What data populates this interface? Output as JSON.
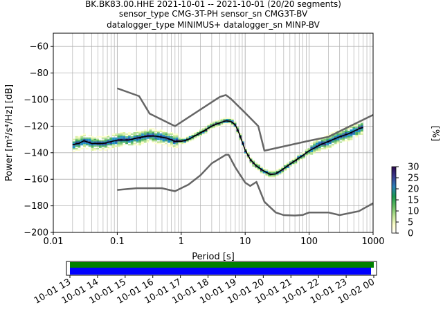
{
  "title": {
    "line1": "BK.BK83.00.HHE   2021-10-01 -- 2021-10-01  (20/20 segments)",
    "line2": "sensor_type CMG-3T-PH sensor_sn CMG3T-BV",
    "line3": "datalogger_type MINIMUS+ datalogger_sn MINP-BV"
  },
  "chart_data": [
    {
      "type": "heatmap",
      "subtype": "probabilistic-power-spectral-density",
      "xlabel": "Period [s]",
      "ylabel": "Power [m²/s⁴/Hz] [dB]",
      "xscale": "log",
      "xlim": [
        0.01,
        1000
      ],
      "ylim": [
        -200,
        -50
      ],
      "x_ticks": [
        0.01,
        0.1,
        1,
        10,
        100,
        1000
      ],
      "x_tick_labels": [
        "0.01",
        "0.1",
        "1",
        "10",
        "100",
        "1000"
      ],
      "y_ticks": [
        -200,
        -180,
        -160,
        -140,
        -120,
        -100,
        -80,
        -60
      ],
      "grid": true,
      "colorbar": {
        "label": "[%]",
        "min": 0,
        "max": 30,
        "ticks": [
          0,
          5,
          10,
          15,
          20,
          25,
          30
        ],
        "colormap": "viridis_r (white-yellow-green-blue-purple)"
      },
      "series": [
        {
          "name": "",
          "style": "gray noise model (high)",
          "color": "#666666",
          "points": [
            [
              0.1,
              -91.5
            ],
            [
              0.22,
              -97.4
            ],
            [
              0.32,
              -110.5
            ],
            [
              0.8,
              -120
            ],
            [
              4,
              -98
            ],
            [
              5,
              -96.5
            ],
            [
              6,
              -99.5
            ],
            [
              10,
              -110
            ],
            [
              16,
              -120
            ],
            [
              20,
              -138.5
            ],
            [
              100,
              -131
            ],
            [
              200,
              -128
            ],
            [
              1000,
              -111.5
            ]
          ]
        },
        {
          "name": "",
          "style": "gray noise model (low)",
          "color": "#666666",
          "points": [
            [
              0.1,
              -168
            ],
            [
              0.2,
              -166.7
            ],
            [
              0.5,
              -166.7
            ],
            [
              0.8,
              -169
            ],
            [
              1.3,
              -164
            ],
            [
              2,
              -157
            ],
            [
              3,
              -148
            ],
            [
              5,
              -141.5
            ],
            [
              5.5,
              -141.5
            ],
            [
              7,
              -151
            ],
            [
              10,
              -162.5
            ],
            [
              12,
              -165
            ],
            [
              15,
              -162
            ],
            [
              20,
              -177
            ],
            [
              30,
              -185
            ],
            [
              40,
              -187
            ],
            [
              60,
              -187.3
            ],
            [
              80,
              -186.8
            ],
            [
              100,
              -185
            ],
            [
              200,
              -185
            ],
            [
              300,
              -187
            ],
            [
              600,
              -184
            ],
            [
              1000,
              -178
            ]
          ]
        },
        {
          "name": "",
          "style": "mode (black)",
          "color": "#000000",
          "points": [
            [
              0.02,
              -134
            ],
            [
              0.025,
              -133
            ],
            [
              0.03,
              -131
            ],
            [
              0.04,
              -133
            ],
            [
              0.06,
              -133
            ],
            [
              0.1,
              -130.5
            ],
            [
              0.15,
              -130.5
            ],
            [
              0.2,
              -129
            ],
            [
              0.3,
              -127.5
            ],
            [
              0.4,
              -127.5
            ],
            [
              0.6,
              -129
            ],
            [
              0.8,
              -131.5
            ],
            [
              1,
              -131.5
            ],
            [
              1.3,
              -130
            ],
            [
              2,
              -125
            ],
            [
              3,
              -120
            ],
            [
              4,
              -117.5
            ],
            [
              5,
              -116
            ],
            [
              6,
              -116.5
            ],
            [
              7,
              -119
            ],
            [
              8,
              -125
            ],
            [
              9,
              -132
            ],
            [
              10,
              -138
            ],
            [
              12,
              -145
            ],
            [
              15,
              -150
            ],
            [
              20,
              -154
            ],
            [
              25,
              -156.5
            ],
            [
              30,
              -156
            ],
            [
              40,
              -152
            ],
            [
              60,
              -146
            ],
            [
              80,
              -142
            ],
            [
              100,
              -138.5
            ],
            [
              150,
              -134
            ],
            [
              200,
              -131.5
            ],
            [
              300,
              -128
            ],
            [
              400,
              -126
            ],
            [
              600,
              -122
            ],
            [
              700,
              -121
            ]
          ]
        }
      ]
    },
    {
      "type": "bar",
      "subtype": "timeline-coverage",
      "x_tick_labels": [
        "10-01 13",
        "10-01 14",
        "10-01 15",
        "10-01 16",
        "10-01 17",
        "10-01 18",
        "10-01 19",
        "10-01 20",
        "10-01 21",
        "10-01 22",
        "10-01 23",
        "10-02 00"
      ],
      "x_hours": [
        13,
        14,
        15,
        16,
        17,
        18,
        19,
        20,
        21,
        22,
        23,
        24
      ],
      "xlim_hours": [
        12.875,
        24.1
      ],
      "bars": [
        {
          "name": "",
          "color": "#008000",
          "start_hour": 13.0,
          "end_hour": 24.0
        },
        {
          "name": "",
          "color": "#0000ff",
          "start_hour": 13.0,
          "end_hour": 23.9
        }
      ]
    }
  ]
}
